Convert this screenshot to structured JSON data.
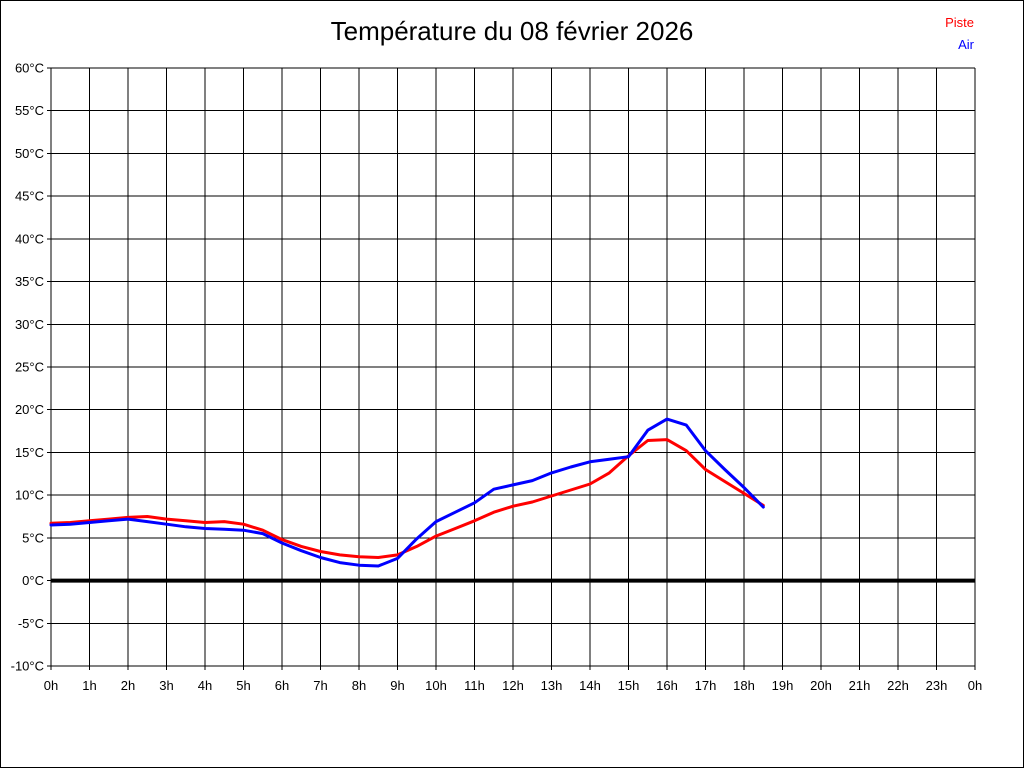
{
  "title": "Température du 08 février 2026",
  "legend": [
    {
      "label": "Piste",
      "color": "#ff0000"
    },
    {
      "label": "Air",
      "color": "#0000ff"
    }
  ],
  "chart_data": {
    "type": "line",
    "title": "Température du 08 février 2026",
    "xlabel": "",
    "ylabel": "",
    "xlim": [
      0,
      24
    ],
    "ylim": [
      -10,
      60
    ],
    "grid": true,
    "grid_color": "#000000",
    "zero_line": true,
    "zero_line_value": 0,
    "legend_position": "top-right",
    "x_ticks": {
      "values": [
        0,
        1,
        2,
        3,
        4,
        5,
        6,
        7,
        8,
        9,
        10,
        11,
        12,
        13,
        14,
        15,
        16,
        17,
        18,
        19,
        20,
        21,
        22,
        23,
        24
      ],
      "labels": [
        "0h",
        "1h",
        "2h",
        "3h",
        "4h",
        "5h",
        "6h",
        "7h",
        "8h",
        "9h",
        "10h",
        "11h",
        "12h",
        "13h",
        "14h",
        "15h",
        "16h",
        "17h",
        "18h",
        "19h",
        "20h",
        "21h",
        "22h",
        "23h",
        "0h"
      ]
    },
    "y_ticks": {
      "values": [
        60,
        55,
        50,
        45,
        40,
        35,
        30,
        25,
        20,
        15,
        10,
        5,
        0,
        -5,
        -10
      ],
      "labels": [
        "60°C",
        "55°C",
        "50°C",
        "45°C",
        "40°C",
        "35°C",
        "30°C",
        "25°C",
        "20°C",
        "15°C",
        "10°C",
        "5°C",
        "0°C",
        "-5°C",
        "-10°C"
      ]
    },
    "x": [
      0,
      0.5,
      1,
      1.5,
      2,
      2.5,
      3,
      3.5,
      4,
      4.5,
      5,
      5.5,
      6,
      6.5,
      7,
      7.5,
      8,
      8.5,
      9,
      9.5,
      10,
      10.5,
      11,
      11.5,
      12,
      12.5,
      13,
      13.5,
      14,
      14.5,
      15,
      15.5,
      16,
      16.5,
      17,
      17.5,
      18,
      18.5
    ],
    "series": [
      {
        "name": "Piste",
        "color": "#ff0000",
        "values": [
          6.7,
          6.8,
          7.0,
          7.2,
          7.4,
          7.5,
          7.2,
          7.0,
          6.8,
          6.9,
          6.6,
          5.9,
          4.8,
          4.0,
          3.4,
          3.0,
          2.8,
          2.7,
          3.0,
          4.0,
          5.2,
          6.1,
          7.0,
          8.0,
          8.7,
          9.2,
          9.9,
          10.6,
          11.3,
          12.6,
          14.6,
          16.4,
          16.5,
          15.2,
          13.0,
          11.6,
          10.2,
          8.8
        ]
      },
      {
        "name": "Air",
        "color": "#0000ff",
        "values": [
          6.5,
          6.6,
          6.8,
          7.0,
          7.2,
          6.9,
          6.6,
          6.3,
          6.1,
          6.0,
          5.9,
          5.5,
          4.4,
          3.5,
          2.7,
          2.1,
          1.8,
          1.7,
          2.6,
          4.9,
          6.9,
          8.0,
          9.1,
          10.7,
          11.2,
          11.7,
          12.6,
          13.3,
          13.9,
          14.2,
          14.5,
          17.6,
          18.9,
          18.2,
          15.2,
          13.0,
          10.9,
          8.6
        ]
      }
    ]
  }
}
